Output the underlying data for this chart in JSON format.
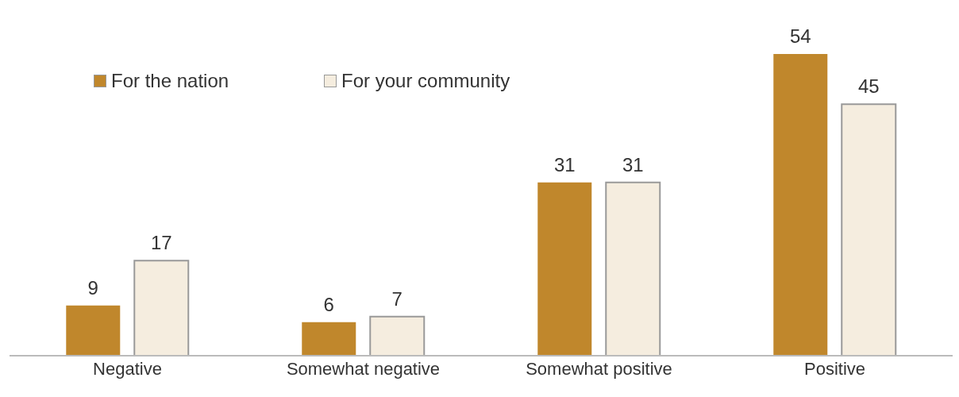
{
  "chart_data": {
    "type": "bar",
    "categories": [
      "Negative",
      "Somewhat negative",
      "Somewhat positive",
      "Positive"
    ],
    "series": [
      {
        "name": "For the nation",
        "color": "#c0872c",
        "values": [
          9,
          6,
          31,
          54
        ]
      },
      {
        "name": "For your community",
        "color": "#f5eddf",
        "values": [
          17,
          7,
          31,
          45
        ]
      }
    ],
    "tick_labels": "x",
    "data_labels": true,
    "legend": "top left",
    "grid": false
  }
}
